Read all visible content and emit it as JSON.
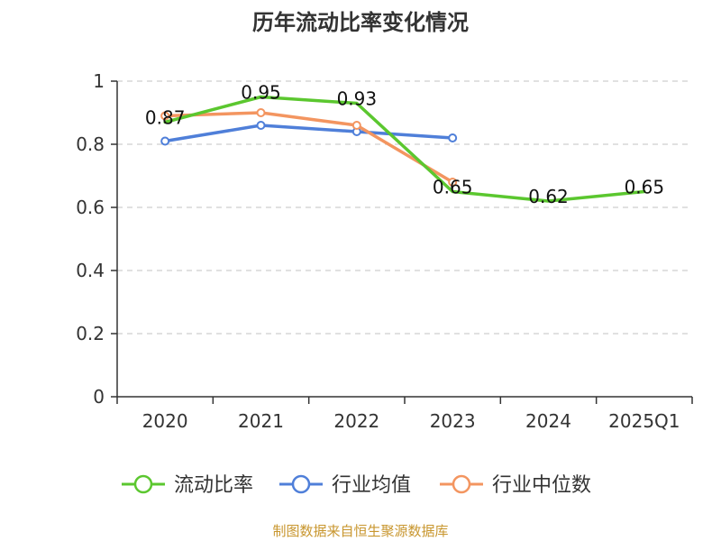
{
  "chart_data": {
    "type": "line",
    "title": "历年流动比率变化情况",
    "categories": [
      "2020",
      "2021",
      "2022",
      "2023",
      "2024",
      "2025Q1"
    ],
    "ylim": [
      0,
      1
    ],
    "yticks": [
      0,
      0.2,
      0.4,
      0.6,
      0.8,
      1
    ],
    "ytick_labels": [
      "0",
      "0.2",
      "0.4",
      "0.6",
      "0.8",
      "1"
    ],
    "grid": true,
    "legend_position": "bottom",
    "series": [
      {
        "name": "流动比率",
        "color": "#5bc72f",
        "values": [
          0.87,
          0.95,
          0.93,
          0.65,
          0.62,
          0.65
        ],
        "labels": [
          "0.87",
          "0.95",
          "0.93",
          "0.65",
          "0.62",
          "0.65"
        ]
      },
      {
        "name": "行业均值",
        "color": "#4f7fd9",
        "values": [
          0.81,
          0.86,
          0.84,
          0.82,
          null,
          null
        ]
      },
      {
        "name": "行业中位数",
        "color": "#f39560",
        "values": [
          0.89,
          0.9,
          0.86,
          0.68,
          null,
          null
        ]
      }
    ]
  },
  "source": {
    "text": "制图数据来自恒生聚源数据库",
    "color": "#c8962e"
  }
}
